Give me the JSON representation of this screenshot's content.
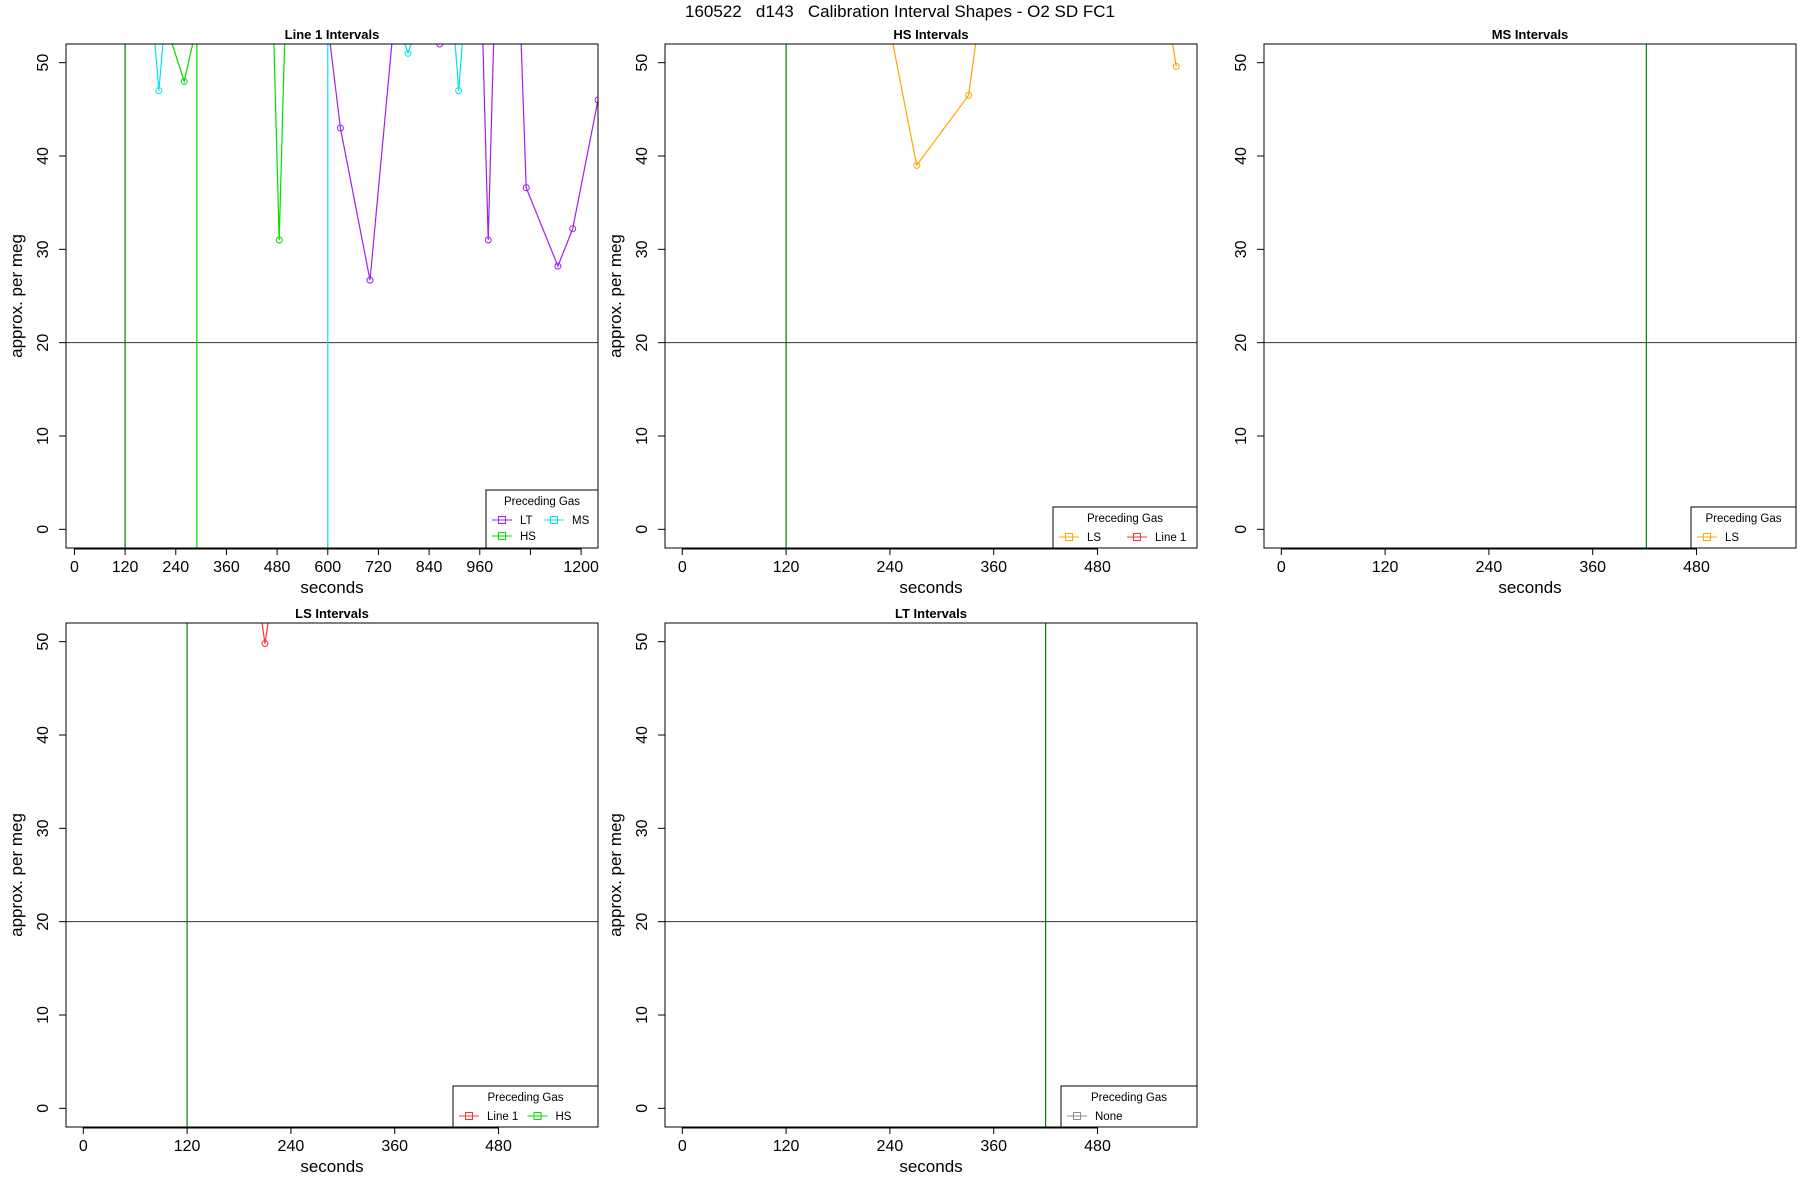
{
  "page": {
    "title": "160522   d143   Calibration Interval Shapes - O2 SD FC1"
  },
  "chart_data": [
    {
      "type": "line",
      "title": "Line 1 Intervals",
      "xlabel": "seconds",
      "ylabel": "approx. per meg",
      "xlim": [
        -20,
        1240
      ],
      "ylim": [
        -2,
        52
      ],
      "xticks": [
        0,
        120,
        240,
        360,
        480,
        600,
        720,
        840,
        960,
        1080,
        1200
      ],
      "xtick_labels": [
        "0",
        "120",
        "240",
        "360",
        "480",
        "600",
        "720",
        "840",
        "960",
        "",
        "1200"
      ],
      "yticks": [
        0,
        10,
        20,
        30,
        40,
        50
      ],
      "hline": 20,
      "legend": {
        "title": "Preceding Gas",
        "position": "bottom-right",
        "columns": 2,
        "entries": [
          {
            "name": "LT",
            "color": "#a020f0"
          },
          {
            "name": "MS",
            "color": "#00e5ee"
          },
          {
            "name": "HS",
            "color": "#00dd00"
          }
        ]
      },
      "vlines": [
        {
          "x": 120,
          "color": "#008000"
        },
        {
          "x": 290,
          "color": "#00dd00"
        },
        {
          "x": 600,
          "color": "#00e5ee"
        }
      ],
      "series": [
        {
          "name": "MS",
          "color": "#00e5ee",
          "x": [
            185,
            200,
            215
          ],
          "y": [
            55,
            47,
            55
          ]
        },
        {
          "name": "HS",
          "color": "#00dd00",
          "x": [
            210,
            260,
            295
          ],
          "y": [
            55,
            48,
            55
          ]
        },
        {
          "name": "HS",
          "color": "#00dd00",
          "x": [
            470,
            485,
            500
          ],
          "y": [
            56,
            31,
            56
          ]
        },
        {
          "name": "LT",
          "color": "#a020f0",
          "x": [
            595,
            630,
            700,
            760
          ],
          "y": [
            56,
            43,
            26.7,
            56
          ]
        },
        {
          "name": "MS",
          "color": "#00e5ee",
          "x": [
            775,
            790,
            805
          ],
          "y": [
            53,
            51,
            53
          ]
        },
        {
          "name": "MS",
          "color": "#00e5ee",
          "x": [
            895,
            910,
            925
          ],
          "y": [
            56,
            47,
            56
          ]
        },
        {
          "name": "LT",
          "color": "#a020f0",
          "x": [
            840,
            865,
            885
          ],
          "y": [
            53,
            52,
            53
          ]
        },
        {
          "name": "LT",
          "color": "#a020f0",
          "x": [
            965,
            980,
            995
          ],
          "y": [
            56,
            31,
            56
          ]
        },
        {
          "name": "LT",
          "color": "#a020f0",
          "x": [
            1055,
            1070,
            1145,
            1180,
            1240
          ],
          "y": [
            56,
            36.6,
            28.2,
            32.2,
            46
          ]
        }
      ]
    },
    {
      "type": "line",
      "title": "HS Intervals",
      "xlabel": "seconds",
      "ylabel": "approx. per meg",
      "xlim": [
        -20,
        595
      ],
      "ylim": [
        -2,
        52
      ],
      "xticks": [
        0,
        120,
        240,
        360,
        480
      ],
      "xtick_labels": [
        "0",
        "120",
        "240",
        "360",
        "480"
      ],
      "yticks": [
        0,
        10,
        20,
        30,
        40,
        50
      ],
      "hline": 20,
      "legend": {
        "title": "Preceding Gas",
        "position": "bottom-right",
        "columns": 2,
        "entries": [
          {
            "name": "LS",
            "color": "#ffa500"
          },
          {
            "name": "Line 1",
            "color": "#ff3030"
          }
        ]
      },
      "vlines": [
        {
          "x": 120,
          "color": "#008000"
        }
      ],
      "series": [
        {
          "name": "LS",
          "color": "#ffa500",
          "x": [
            235,
            271,
            331,
            345
          ],
          "y": [
            56,
            39,
            46.5,
            56
          ]
        },
        {
          "name": "LS",
          "color": "#ffa500",
          "x": [
            560,
            571
          ],
          "y": [
            56,
            49.6
          ]
        }
      ]
    },
    {
      "type": "line",
      "title": "MS Intervals",
      "xlabel": "seconds",
      "ylabel": "",
      "xlim": [
        -20,
        595
      ],
      "ylim": [
        -2,
        52
      ],
      "xticks": [
        0,
        120,
        240,
        360,
        480
      ],
      "xtick_labels": [
        "0",
        "120",
        "240",
        "360",
        "480"
      ],
      "yticks": [
        0,
        10,
        20,
        30,
        40,
        50
      ],
      "hline": 20,
      "legend": {
        "title": "Preceding Gas",
        "position": "bottom-right",
        "columns": 1,
        "entries": [
          {
            "name": "LS",
            "color": "#ffa500"
          }
        ]
      },
      "vlines": [
        {
          "x": 422,
          "color": "#008000"
        }
      ],
      "series": []
    },
    {
      "type": "line",
      "title": "LS Intervals",
      "xlabel": "seconds",
      "ylabel": "approx. per meg",
      "xlim": [
        -20,
        595
      ],
      "ylim": [
        -2,
        52
      ],
      "xticks": [
        0,
        120,
        240,
        360,
        480
      ],
      "xtick_labels": [
        "0",
        "120",
        "240",
        "360",
        "480"
      ],
      "yticks": [
        0,
        10,
        20,
        30,
        40,
        50
      ],
      "hline": 20,
      "legend": {
        "title": "Preceding Gas",
        "position": "bottom-right",
        "columns": 2,
        "entries": [
          {
            "name": "Line 1",
            "color": "#ff3030"
          },
          {
            "name": "HS",
            "color": "#00dd00"
          }
        ]
      },
      "vlines": [
        {
          "x": 120,
          "color": "#008000"
        }
      ],
      "series": [
        {
          "name": "Line 1",
          "color": "#ff3030",
          "x": [
            205,
            210,
            215
          ],
          "y": [
            53,
            49.8,
            53
          ]
        }
      ]
    },
    {
      "type": "line",
      "title": "LT Intervals",
      "xlabel": "seconds",
      "ylabel": "approx. per meg",
      "xlim": [
        -20,
        595
      ],
      "ylim": [
        -2,
        52
      ],
      "xticks": [
        0,
        120,
        240,
        360,
        480
      ],
      "xtick_labels": [
        "0",
        "120",
        "240",
        "360",
        "480"
      ],
      "yticks": [
        0,
        10,
        20,
        30,
        40,
        50
      ],
      "hline": 20,
      "legend": {
        "title": "Preceding Gas",
        "position": "bottom-right",
        "columns": 1,
        "entries": [
          {
            "name": "None",
            "color": "#909090"
          }
        ]
      },
      "vlines": [
        {
          "x": 420,
          "color": "#008000"
        }
      ],
      "series": []
    }
  ]
}
